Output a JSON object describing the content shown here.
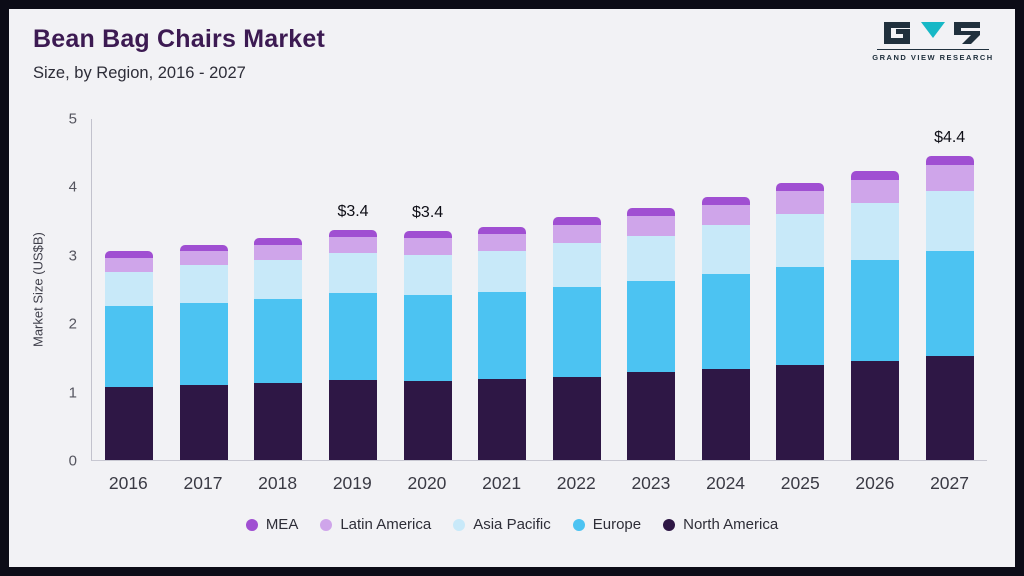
{
  "header": {
    "title": "Bean Bag Chairs Market",
    "subtitle": "Size, by Region, 2016 - 2027",
    "logo_text": "GRAND VIEW RESEARCH"
  },
  "chart_data": {
    "type": "bar",
    "stacked": true,
    "title": "Bean Bag Chairs Market Size, by Region, 2016 - 2027",
    "xlabel": "",
    "ylabel": "Market Size (US$B)",
    "ylim": [
      0,
      5
    ],
    "yticks": [
      0,
      1,
      2,
      3,
      4,
      5
    ],
    "grid": false,
    "legend_position": "bottom",
    "categories": [
      "2016",
      "2017",
      "2018",
      "2019",
      "2020",
      "2021",
      "2022",
      "2023",
      "2024",
      "2025",
      "2026",
      "2027"
    ],
    "series": [
      {
        "name": "North America",
        "color": "#2e1745",
        "values": [
          1.07,
          1.1,
          1.13,
          1.17,
          1.16,
          1.19,
          1.22,
          1.28,
          1.33,
          1.39,
          1.45,
          1.52
        ]
      },
      {
        "name": "Europe",
        "color": "#4cc3f2",
        "values": [
          1.18,
          1.2,
          1.23,
          1.27,
          1.26,
          1.26,
          1.31,
          1.34,
          1.39,
          1.43,
          1.48,
          1.53
        ]
      },
      {
        "name": "Asia Pacific",
        "color": "#c8e9f9",
        "values": [
          0.5,
          0.55,
          0.56,
          0.58,
          0.58,
          0.6,
          0.64,
          0.66,
          0.72,
          0.78,
          0.83,
          0.88
        ]
      },
      {
        "name": "Latin America",
        "color": "#cfa5ea",
        "values": [
          0.2,
          0.2,
          0.22,
          0.24,
          0.24,
          0.25,
          0.27,
          0.29,
          0.29,
          0.33,
          0.34,
          0.38
        ]
      },
      {
        "name": "MEA",
        "color": "#a04fd2",
        "values": [
          0.1,
          0.1,
          0.11,
          0.11,
          0.11,
          0.11,
          0.11,
          0.12,
          0.12,
          0.12,
          0.12,
          0.13
        ]
      }
    ],
    "legend_order": [
      "MEA",
      "Latin America",
      "Asia Pacific",
      "Europe",
      "North America"
    ],
    "annotations": [
      {
        "category": "2019",
        "label": "$3.4"
      },
      {
        "category": "2020",
        "label": "$3.4"
      },
      {
        "category": "2027",
        "label": "$4.4"
      }
    ]
  },
  "colors": {
    "frame": "#0c0c17",
    "background": "#f2f2f5",
    "title": "#3c1a52",
    "logo_teal": "#17b8c6",
    "logo_dark": "#20303d"
  }
}
